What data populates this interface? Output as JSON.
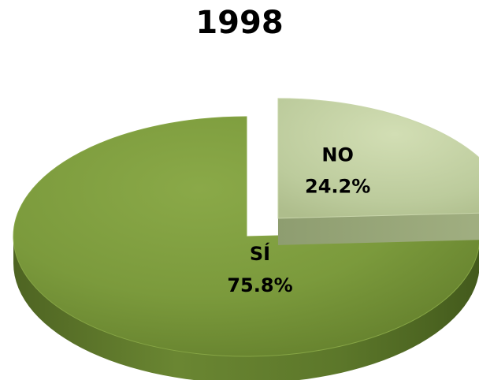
{
  "chart_data": {
    "type": "pie",
    "title": "1998",
    "slices": [
      {
        "label": "NO",
        "value": 24.2,
        "value_label": "24.2%",
        "color": "#b9c897",
        "exploded": true
      },
      {
        "label": "SÍ",
        "value": 75.8,
        "value_label": "75.8%",
        "color": "#7b9a3c",
        "exploded": false
      }
    ],
    "start_position": "top",
    "direction": "clockwise",
    "style": "3d-tilted"
  }
}
